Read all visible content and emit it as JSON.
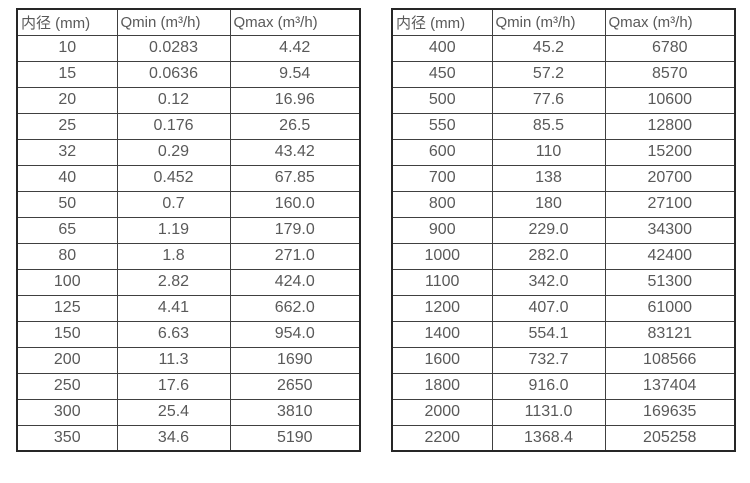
{
  "colors": {
    "text": "#595959",
    "border_inner": "#404040",
    "border_outer": "#262626",
    "background": "#ffffff"
  },
  "tables": [
    {
      "name": "flow-table-small-diameters",
      "headers": [
        "内径 (mm)",
        "Qmin (m³/h)",
        "Qmax (m³/h)"
      ],
      "rows": [
        [
          "10",
          "0.0283",
          "4.42"
        ],
        [
          "15",
          "0.0636",
          "9.54"
        ],
        [
          "20",
          "0.12",
          "16.96"
        ],
        [
          "25",
          "0.176",
          "26.5"
        ],
        [
          "32",
          "0.29",
          "43.42"
        ],
        [
          "40",
          "0.452",
          "67.85"
        ],
        [
          "50",
          "0.7",
          "160.0"
        ],
        [
          "65",
          "1.19",
          "179.0"
        ],
        [
          "80",
          "1.8",
          "271.0"
        ],
        [
          "100",
          "2.82",
          "424.0"
        ],
        [
          "125",
          "4.41",
          "662.0"
        ],
        [
          "150",
          "6.63",
          "954.0"
        ],
        [
          "200",
          "11.3",
          "1690"
        ],
        [
          "250",
          "17.6",
          "2650"
        ],
        [
          "300",
          "25.4",
          "3810"
        ],
        [
          "350",
          "34.6",
          "5190"
        ]
      ]
    },
    {
      "name": "flow-table-large-diameters",
      "headers": [
        "内径 (mm)",
        "Qmin (m³/h)",
        "Qmax (m³/h)"
      ],
      "rows": [
        [
          "400",
          "45.2",
          "6780"
        ],
        [
          "450",
          "57.2",
          "8570"
        ],
        [
          "500",
          "77.6",
          "10600"
        ],
        [
          "550",
          "85.5",
          "12800"
        ],
        [
          "600",
          "110",
          "15200"
        ],
        [
          "700",
          "138",
          "20700"
        ],
        [
          "800",
          "180",
          "27100"
        ],
        [
          "900",
          "229.0",
          "34300"
        ],
        [
          "1000",
          "282.0",
          "42400"
        ],
        [
          "1100",
          "342.0",
          "51300"
        ],
        [
          "1200",
          "407.0",
          "61000"
        ],
        [
          "1400",
          "554.1",
          "83121"
        ],
        [
          "1600",
          "732.7",
          "108566"
        ],
        [
          "1800",
          "916.0",
          "137404"
        ],
        [
          "2000",
          "1131.0",
          "169635"
        ],
        [
          "2200",
          "1368.4",
          "205258"
        ]
      ]
    }
  ]
}
